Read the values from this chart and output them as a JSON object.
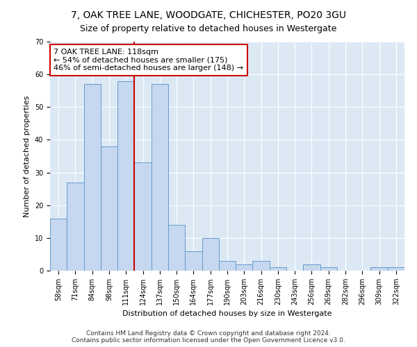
{
  "title": "7, OAK TREE LANE, WOODGATE, CHICHESTER, PO20 3GU",
  "subtitle": "Size of property relative to detached houses in Westergate",
  "xlabel": "Distribution of detached houses by size in Westergate",
  "ylabel": "Number of detached properties",
  "bar_labels": [
    "58sqm",
    "71sqm",
    "84sqm",
    "98sqm",
    "111sqm",
    "124sqm",
    "137sqm",
    "150sqm",
    "164sqm",
    "177sqm",
    "190sqm",
    "203sqm",
    "216sqm",
    "230sqm",
    "243sqm",
    "256sqm",
    "269sqm",
    "282sqm",
    "296sqm",
    "309sqm",
    "322sqm"
  ],
  "bar_values": [
    16,
    27,
    57,
    38,
    58,
    33,
    57,
    14,
    6,
    10,
    3,
    2,
    3,
    1,
    0,
    2,
    1,
    0,
    0,
    1,
    1
  ],
  "bar_color": "#c5d8ef",
  "bar_edge_color": "#6699cc",
  "vline_pos": 4.5,
  "vline_color": "#cc0000",
  "annotation_text": "7 OAK TREE LANE: 118sqm\n← 54% of detached houses are smaller (175)\n46% of semi-detached houses are larger (148) →",
  "annotation_box_facecolor": "#ffffff",
  "annotation_box_edgecolor": "#cc0000",
  "ylim": [
    0,
    70
  ],
  "yticks": [
    0,
    10,
    20,
    30,
    40,
    50,
    60,
    70
  ],
  "footnote": "Contains HM Land Registry data © Crown copyright and database right 2024.\nContains public sector information licensed under the Open Government Licence v3.0.",
  "plot_bg_color": "#dce9f5",
  "fig_bg_color": "#ffffff",
  "title_fontsize": 10,
  "subtitle_fontsize": 9,
  "xlabel_fontsize": 8,
  "ylabel_fontsize": 8,
  "tick_fontsize": 7,
  "annotation_fontsize": 8,
  "footnote_fontsize": 6.5
}
